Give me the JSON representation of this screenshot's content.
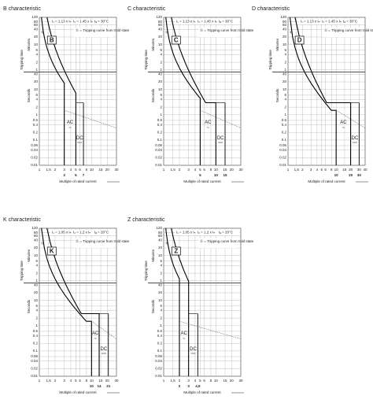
{
  "panels": [
    {
      "title": "B characteristic",
      "letter": "B",
      "conditions": [
        "I₁ = 1.13 x Iₙ",
        "I₂ = 1.45 x Iₙ",
        "tₐ = 30°C"
      ],
      "legend_note": "① = Tripping curve from cold state",
      "y_label": "Tripping time",
      "minutes_label": "Minutes",
      "seconds_label": "Seconds",
      "minutes_ticks": [
        120,
        80,
        60,
        40,
        20,
        10,
        6,
        4,
        2,
        1
      ],
      "seconds_ticks": [
        40,
        20,
        10,
        6,
        4,
        2,
        1,
        0.6,
        0.4,
        0.2,
        0.1,
        0.06,
        0.04,
        0.02,
        0.01
      ],
      "xticks": [
        1,
        {
          "value": 1.5,
          "label": "1,5"
        },
        2,
        3,
        4,
        5,
        6,
        8,
        10,
        15,
        20,
        30
      ],
      "xlim": [
        1,
        30
      ],
      "bottom_labels": [
        3,
        5,
        7
      ],
      "ac_label": "AC",
      "dc_label": "DC",
      "x_label": "Multiple of rated current"
    },
    {
      "title": "C characteristic",
      "letter": "C",
      "conditions": [
        "I₁ = 1.13 x Iₙ",
        "I₂ = 1.45 x Iₙ",
        "tₐ = 30°C"
      ],
      "legend_note": "① = Tripping curve from cold state",
      "y_label": "Tripping time",
      "minutes_label": "Minutes",
      "seconds_label": "Seconds",
      "minutes_ticks": [
        120,
        80,
        60,
        40,
        20,
        10,
        6,
        4,
        2,
        1
      ],
      "seconds_ticks": [
        40,
        20,
        10,
        6,
        4,
        2,
        1,
        0.6,
        0.4,
        0.2,
        0.1,
        0.06,
        0.04,
        0.02,
        0.01
      ],
      "xticks": [
        1,
        {
          "value": 1.5,
          "label": "1,5"
        },
        2,
        3,
        4,
        5,
        6,
        8,
        10,
        15,
        20,
        30
      ],
      "xlim": [
        1,
        30
      ],
      "bottom_labels": [
        5,
        10,
        15
      ],
      "ac_label": "AC",
      "dc_label": "DC",
      "x_label": "Multiple of rated current"
    },
    {
      "title": "D characteristic",
      "letter": "D",
      "conditions": [
        "I₁ = 1.13 x Iₙ",
        "I₂ = 1.45 x Iₙ",
        "tₐ = 30°C"
      ],
      "legend_note": "① = Tripping curve from cold state",
      "y_label": "Tripping time",
      "minutes_label": "Minutes",
      "seconds_label": "Seconds",
      "minutes_ticks": [
        120,
        80,
        60,
        40,
        20,
        10,
        6,
        4,
        2,
        1
      ],
      "seconds_ticks": [
        40,
        20,
        10,
        6,
        4,
        2,
        1,
        0.6,
        0.4,
        0.2,
        0.1,
        0.06,
        0.04,
        0.02,
        0.01
      ],
      "xticks": [
        1,
        {
          "value": 1.5,
          "label": "1,5"
        },
        2,
        3,
        4,
        5,
        6,
        8,
        10,
        15,
        20,
        30,
        40
      ],
      "xlim": [
        1,
        40
      ],
      "bottom_labels": [
        10,
        20,
        30
      ],
      "ac_label": "AC",
      "dc_label": "DC",
      "x_label": "Multiple of rated current"
    },
    {
      "title": "K characteristic",
      "letter": "K",
      "conditions": [
        "I₁ = 1.05 x Iₙ",
        "I₂ = 1.2 x Iₙ",
        "tₐ = 20°C"
      ],
      "legend_note": "① = Tripping curve from cold state",
      "y_label": "Tripping time",
      "minutes_label": "Minutes",
      "seconds_label": "Seconds",
      "minutes_ticks": [
        120,
        80,
        60,
        40,
        20,
        10,
        6,
        4,
        2,
        1
      ],
      "seconds_ticks": [
        40,
        20,
        10,
        6,
        4,
        2,
        1,
        0.6,
        0.4,
        0.2,
        0.1,
        0.06,
        0.04,
        0.02,
        0.01
      ],
      "xticks": [
        1,
        {
          "value": 1.5,
          "label": "1,5"
        },
        2,
        3,
        4,
        5,
        6,
        8,
        10,
        15,
        20,
        30
      ],
      "xlim": [
        1,
        30
      ],
      "bottom_labels": [
        10,
        14,
        21
      ],
      "ac_label": "AC",
      "dc_label": "DC",
      "x_label": "Multiple of rated current"
    },
    {
      "title": "Z characteristic",
      "letter": "Z",
      "conditions": [
        "I₁ = 1.05 x Iₙ",
        "I₂ = 1.2 x Iₙ",
        "tₐ = 20°C"
      ],
      "legend_note": "① = Tripping curve from cold state",
      "y_label": "Tripping time",
      "minutes_label": "Minutes",
      "seconds_label": "Seconds",
      "minutes_ticks": [
        120,
        80,
        60,
        40,
        20,
        10,
        6,
        4,
        2,
        1
      ],
      "seconds_ticks": [
        40,
        20,
        10,
        6,
        4,
        2,
        1,
        0.6,
        0.4,
        0.2,
        0.1,
        0.06,
        0.04,
        0.02,
        0.01
      ],
      "xticks": [
        1,
        {
          "value": 1.5,
          "label": "1,5"
        },
        2,
        3,
        4,
        5,
        6,
        8,
        10,
        15,
        20,
        30
      ],
      "xlim": [
        1,
        30
      ],
      "bottom_labels": [
        2,
        3,
        {
          "value": 4.5,
          "label": "4,5"
        }
      ],
      "ac_label": "AC",
      "dc_label": "DC",
      "x_label": "Multiple of rated current"
    }
  ]
}
